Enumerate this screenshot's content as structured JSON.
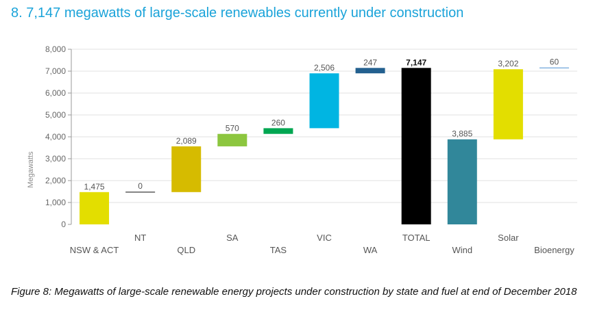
{
  "heading": "8.  7,147 megawatts of large-scale renewables currently under construction",
  "caption": "Figure 8: Megawatts of large-scale renewable energy projects under construction by state and fuel at end of December 2018",
  "chart_data": {
    "type": "bar",
    "subtype": "waterfall",
    "title": "",
    "xlabel": "",
    "ylabel": "Megawatts",
    "ylim": [
      0,
      8000
    ],
    "yticks": [
      "0",
      "1,000",
      "2,000",
      "3,000",
      "4,000",
      "5,000",
      "6,000",
      "7,000",
      "8,000"
    ],
    "grid": true,
    "legend": "none",
    "categories": [
      "NSW & ACT",
      "NT",
      "QLD",
      "SA",
      "TAS",
      "VIC",
      "WA",
      "TOTAL",
      "Wind",
      "Solar",
      "Bioenergy"
    ],
    "values": [
      1475,
      0,
      2089,
      570,
      260,
      2506,
      247,
      7147,
      3885,
      3202,
      60
    ],
    "bases": [
      0,
      1475,
      1475,
      3564,
      4134,
      4394,
      6900,
      0,
      0,
      3885,
      7087
    ],
    "value_labels": [
      "1,475",
      "0",
      "2,089",
      "570",
      "260",
      "2,506",
      "247",
      "7,147",
      "3,885",
      "3,202",
      "60"
    ],
    "colors": [
      "#e3de00",
      "#7f7f7f",
      "#d6bb00",
      "#8cc63f",
      "#00a651",
      "#00b5e2",
      "#23608f",
      "#000000",
      "#31879a",
      "#e3de00",
      "#9dc3e6"
    ]
  }
}
